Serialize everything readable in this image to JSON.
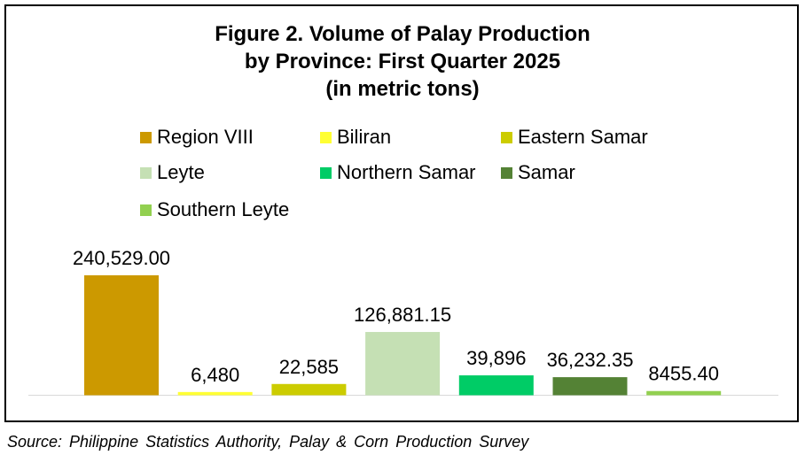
{
  "chart_data": {
    "type": "bar",
    "title_lines": [
      "Figure 2. Volume of Palay Production",
      "by Province: First Quarter 2025",
      "(in metric tons)"
    ],
    "categories": [
      "Region VIII",
      "Biliran",
      "Eastern Samar",
      "Leyte",
      "Northern Samar",
      "Samar",
      "Southern Leyte"
    ],
    "values": [
      240529.0,
      6480,
      22585,
      126881.15,
      39896,
      36232.35,
      8455.4
    ],
    "data_labels": [
      "240,529.00",
      "6,480",
      "22,585",
      "126,881.15",
      "39,896",
      "36,232.35",
      "8455.40"
    ],
    "colors": [
      "#CC9900",
      "#FFFF33",
      "#CCCC00",
      "#C5E0B4",
      "#00CC66",
      "#548235",
      "#92D050"
    ],
    "legend_position": "top",
    "grid": false,
    "ylim": [
      0,
      240529
    ]
  },
  "source": "Source: Philippine Statistics Authority, Palay & Corn Production Survey"
}
